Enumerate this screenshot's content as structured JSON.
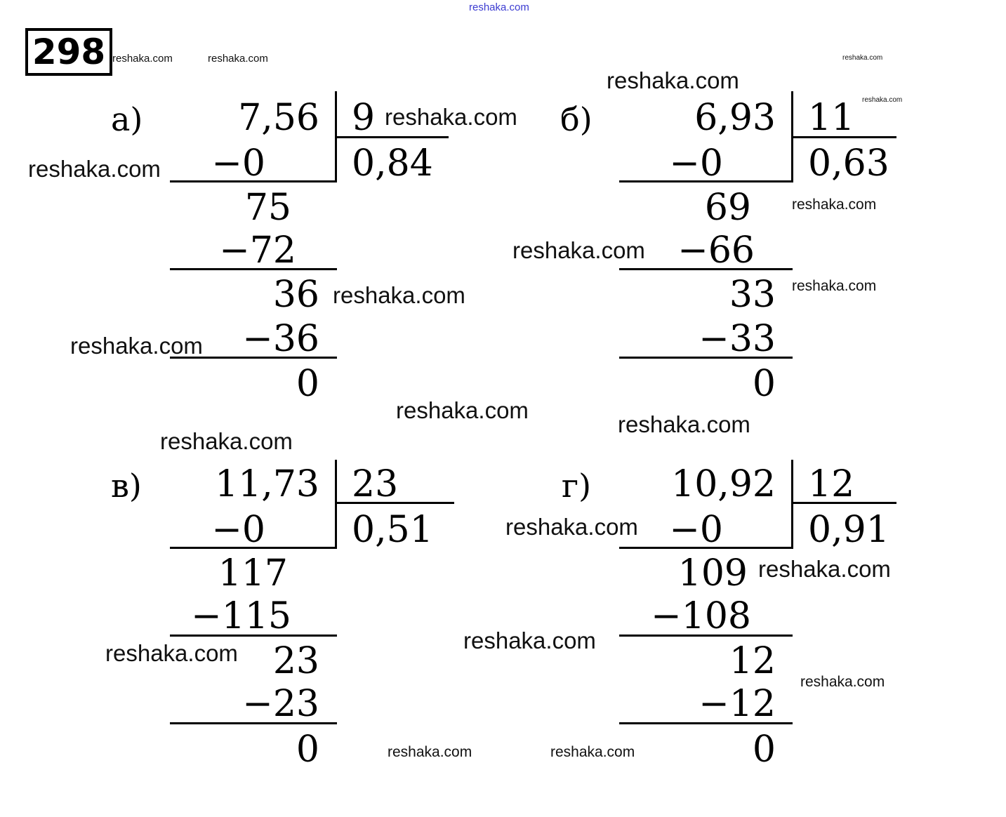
{
  "header": {
    "problem_number": "298",
    "top_watermark": "reshaka.com",
    "top_watermark_color": "#3b3bd1"
  },
  "problems": [
    {
      "label": "а)",
      "dividend": "7,56",
      "divisor": "9",
      "quotient": "0,84",
      "steps": [
        "−0",
        "75",
        "−72",
        "36",
        "−36",
        "0"
      ]
    },
    {
      "label": "б)",
      "dividend": "6,93",
      "divisor": "11",
      "quotient": "0,63",
      "steps": [
        "−0",
        "69",
        "−66",
        "33",
        "−33",
        "0"
      ]
    },
    {
      "label": "в)",
      "dividend": "11,73",
      "divisor": "23",
      "quotient": "0,51",
      "steps": [
        "−0",
        "117",
        "−115",
        "23",
        "−23",
        "0"
      ]
    },
    {
      "label": "г)",
      "dividend": "10,92",
      "divisor": "12",
      "quotient": "0,91",
      "steps": [
        "−0",
        "109",
        "−108",
        "12",
        "−12",
        "0"
      ]
    }
  ],
  "watermarks": [
    "reshaka.com",
    "reshaka.com",
    "reshaka.com",
    "reshaka.com",
    "reshaka.com",
    "reshaka.com",
    "reshaka.com",
    "reshaka.com",
    "reshaka.com",
    "reshaka.com",
    "reshaka.com",
    "reshaka.com",
    "reshaka.com",
    "reshaka.com",
    "reshaka.com",
    "reshaka.com",
    "reshaka.com",
    "reshaka.com",
    "reshaka.com",
    "reshaka.com",
    "reshaka.com",
    "reshaka.com"
  ]
}
